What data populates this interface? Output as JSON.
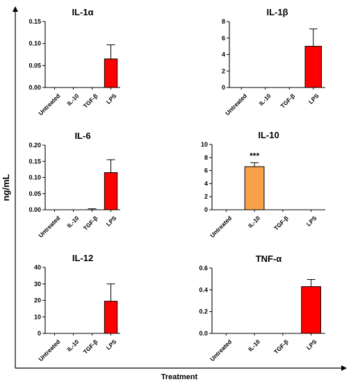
{
  "figure": {
    "ylabel": "ng/mL",
    "xlabel": "Treatment",
    "colors": {
      "axis": "#000000",
      "lps_bar": "#ff0000",
      "il10_bar": "#f8a14a"
    }
  },
  "chart_data": [
    {
      "type": "bar",
      "title": "IL-1α",
      "categories": [
        "Untreated",
        "IL-10",
        "TGF-β",
        "LPS"
      ],
      "values": [
        0,
        0,
        0,
        0.065
      ],
      "errors": [
        0,
        0,
        0,
        0.032
      ],
      "colors": [
        "#ff0000",
        "#ff0000",
        "#ff0000",
        "#ff0000"
      ],
      "ylim": [
        0,
        0.15
      ],
      "yticks": [
        0,
        0.05,
        0.1,
        0.15
      ],
      "yticklabels": [
        "0.00",
        "0.05",
        "0.10",
        "0.15"
      ],
      "annotation": ""
    },
    {
      "type": "bar",
      "title": "IL-1β",
      "categories": [
        "Untreated",
        "IL-10",
        "TGF-β",
        "LPS"
      ],
      "values": [
        0,
        0,
        0,
        5.0
      ],
      "errors": [
        0,
        0,
        0,
        2.1
      ],
      "colors": [
        "#ff0000",
        "#ff0000",
        "#ff0000",
        "#ff0000"
      ],
      "ylim": [
        0,
        8
      ],
      "yticks": [
        0,
        2,
        4,
        6,
        8
      ],
      "yticklabels": [
        "0",
        "2",
        "4",
        "6",
        "8"
      ],
      "annotation": ""
    },
    {
      "type": "bar",
      "title": "IL-6",
      "categories": [
        "Untreated",
        "IL-10",
        "TGF-β",
        "LPS"
      ],
      "values": [
        0,
        0,
        0,
        0.115
      ],
      "errors": [
        0,
        0,
        0.003,
        0.04
      ],
      "colors": [
        "#ff0000",
        "#ff0000",
        "#ff0000",
        "#ff0000"
      ],
      "ylim": [
        0,
        0.2
      ],
      "yticks": [
        0,
        0.05,
        0.1,
        0.15,
        0.2
      ],
      "yticklabels": [
        "0.00",
        "0.05",
        "0.10",
        "0.15",
        "0.20"
      ],
      "annotation": ""
    },
    {
      "type": "bar",
      "title": "IL-10",
      "categories": [
        "Untreated",
        "IL-10",
        "TGF-β",
        "LPS"
      ],
      "values": [
        0,
        6.6,
        0,
        0
      ],
      "errors": [
        0,
        0.6,
        0,
        0
      ],
      "colors": [
        "#f8a14a",
        "#f8a14a",
        "#f8a14a",
        "#f8a14a"
      ],
      "ylim": [
        0,
        10
      ],
      "yticks": [
        0,
        2,
        4,
        6,
        8,
        10
      ],
      "yticklabels": [
        "0",
        "2",
        "4",
        "6",
        "8",
        "10"
      ],
      "annotation": "***",
      "annotation_index": 1
    },
    {
      "type": "bar",
      "title": "IL-12",
      "categories": [
        "Untreated",
        "IL-10",
        "TGF-β",
        "LPS"
      ],
      "values": [
        0,
        0,
        0,
        19.5
      ],
      "errors": [
        0,
        0,
        0,
        10.5
      ],
      "colors": [
        "#ff0000",
        "#ff0000",
        "#ff0000",
        "#ff0000"
      ],
      "ylim": [
        0,
        40
      ],
      "yticks": [
        0,
        10,
        20,
        30,
        40
      ],
      "yticklabels": [
        "0",
        "10",
        "20",
        "30",
        "40"
      ],
      "annotation": ""
    },
    {
      "type": "bar",
      "title": "TNF-α",
      "categories": [
        "Untreated",
        "IL-10",
        "TGF-β",
        "LPS"
      ],
      "values": [
        0,
        0,
        0,
        0.43
      ],
      "errors": [
        0,
        0,
        0,
        0.065
      ],
      "colors": [
        "#ff0000",
        "#ff0000",
        "#ff0000",
        "#ff0000"
      ],
      "ylim": [
        0,
        0.6
      ],
      "yticks": [
        0,
        0.2,
        0.4,
        0.6
      ],
      "yticklabels": [
        "0.0",
        "0.2",
        "0.4",
        "0.6"
      ],
      "annotation": ""
    }
  ]
}
